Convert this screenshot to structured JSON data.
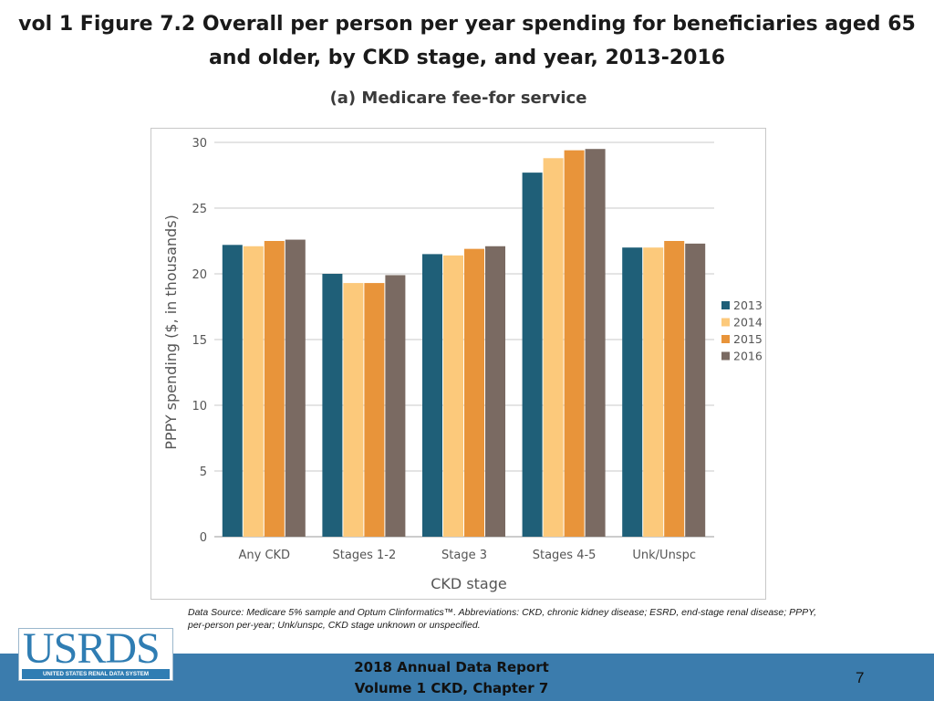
{
  "slide": {
    "title": "vol 1 Figure 7.2 Overall per person per year spending for beneficiaries aged 65 and older, by CKD stage, and year, 2013-2016",
    "source_note": "Data Source: Medicare 5% sample and Optum Clinformatics™. Abbreviations: CKD, chronic kidney disease; ESRD, end-stage renal disease; PPPY, per-person per-year; Unk/unspc, CKD stage unknown or unspecified.",
    "footer_line1": "2018 Annual Data Report",
    "footer_line2": "Volume 1 CKD, Chapter 7",
    "page_number": "7",
    "logo_text": "USRDS",
    "logo_tagline": "UNITED STATES RENAL DATA SYSTEM",
    "footer_color": "#3b7cad",
    "logo_color": "#2f7db3"
  },
  "chart_data": {
    "type": "bar",
    "title": "(a) Medicare fee-for service",
    "xlabel": "CKD stage",
    "ylabel": "PPPY spending ($, in thousands)",
    "ylim": [
      0,
      30
    ],
    "yticks": [
      0,
      5,
      10,
      15,
      20,
      25,
      30
    ],
    "grid": true,
    "legend_position": "right",
    "categories": [
      "Any CKD",
      "Stages 1-2",
      "Stage 3",
      "Stages 4-5",
      "Unk/Unspc"
    ],
    "series": [
      {
        "name": "2013",
        "color": "#1f5f78",
        "values": [
          22.2,
          20.0,
          21.5,
          27.7,
          22.0
        ]
      },
      {
        "name": "2014",
        "color": "#fcc97b",
        "values": [
          22.1,
          19.3,
          21.4,
          28.8,
          22.0
        ]
      },
      {
        "name": "2015",
        "color": "#e8943a",
        "values": [
          22.5,
          19.3,
          21.9,
          29.4,
          22.5
        ]
      },
      {
        "name": "2016",
        "color": "#7a6a62",
        "values": [
          22.6,
          19.9,
          22.1,
          29.5,
          22.3
        ]
      }
    ]
  }
}
